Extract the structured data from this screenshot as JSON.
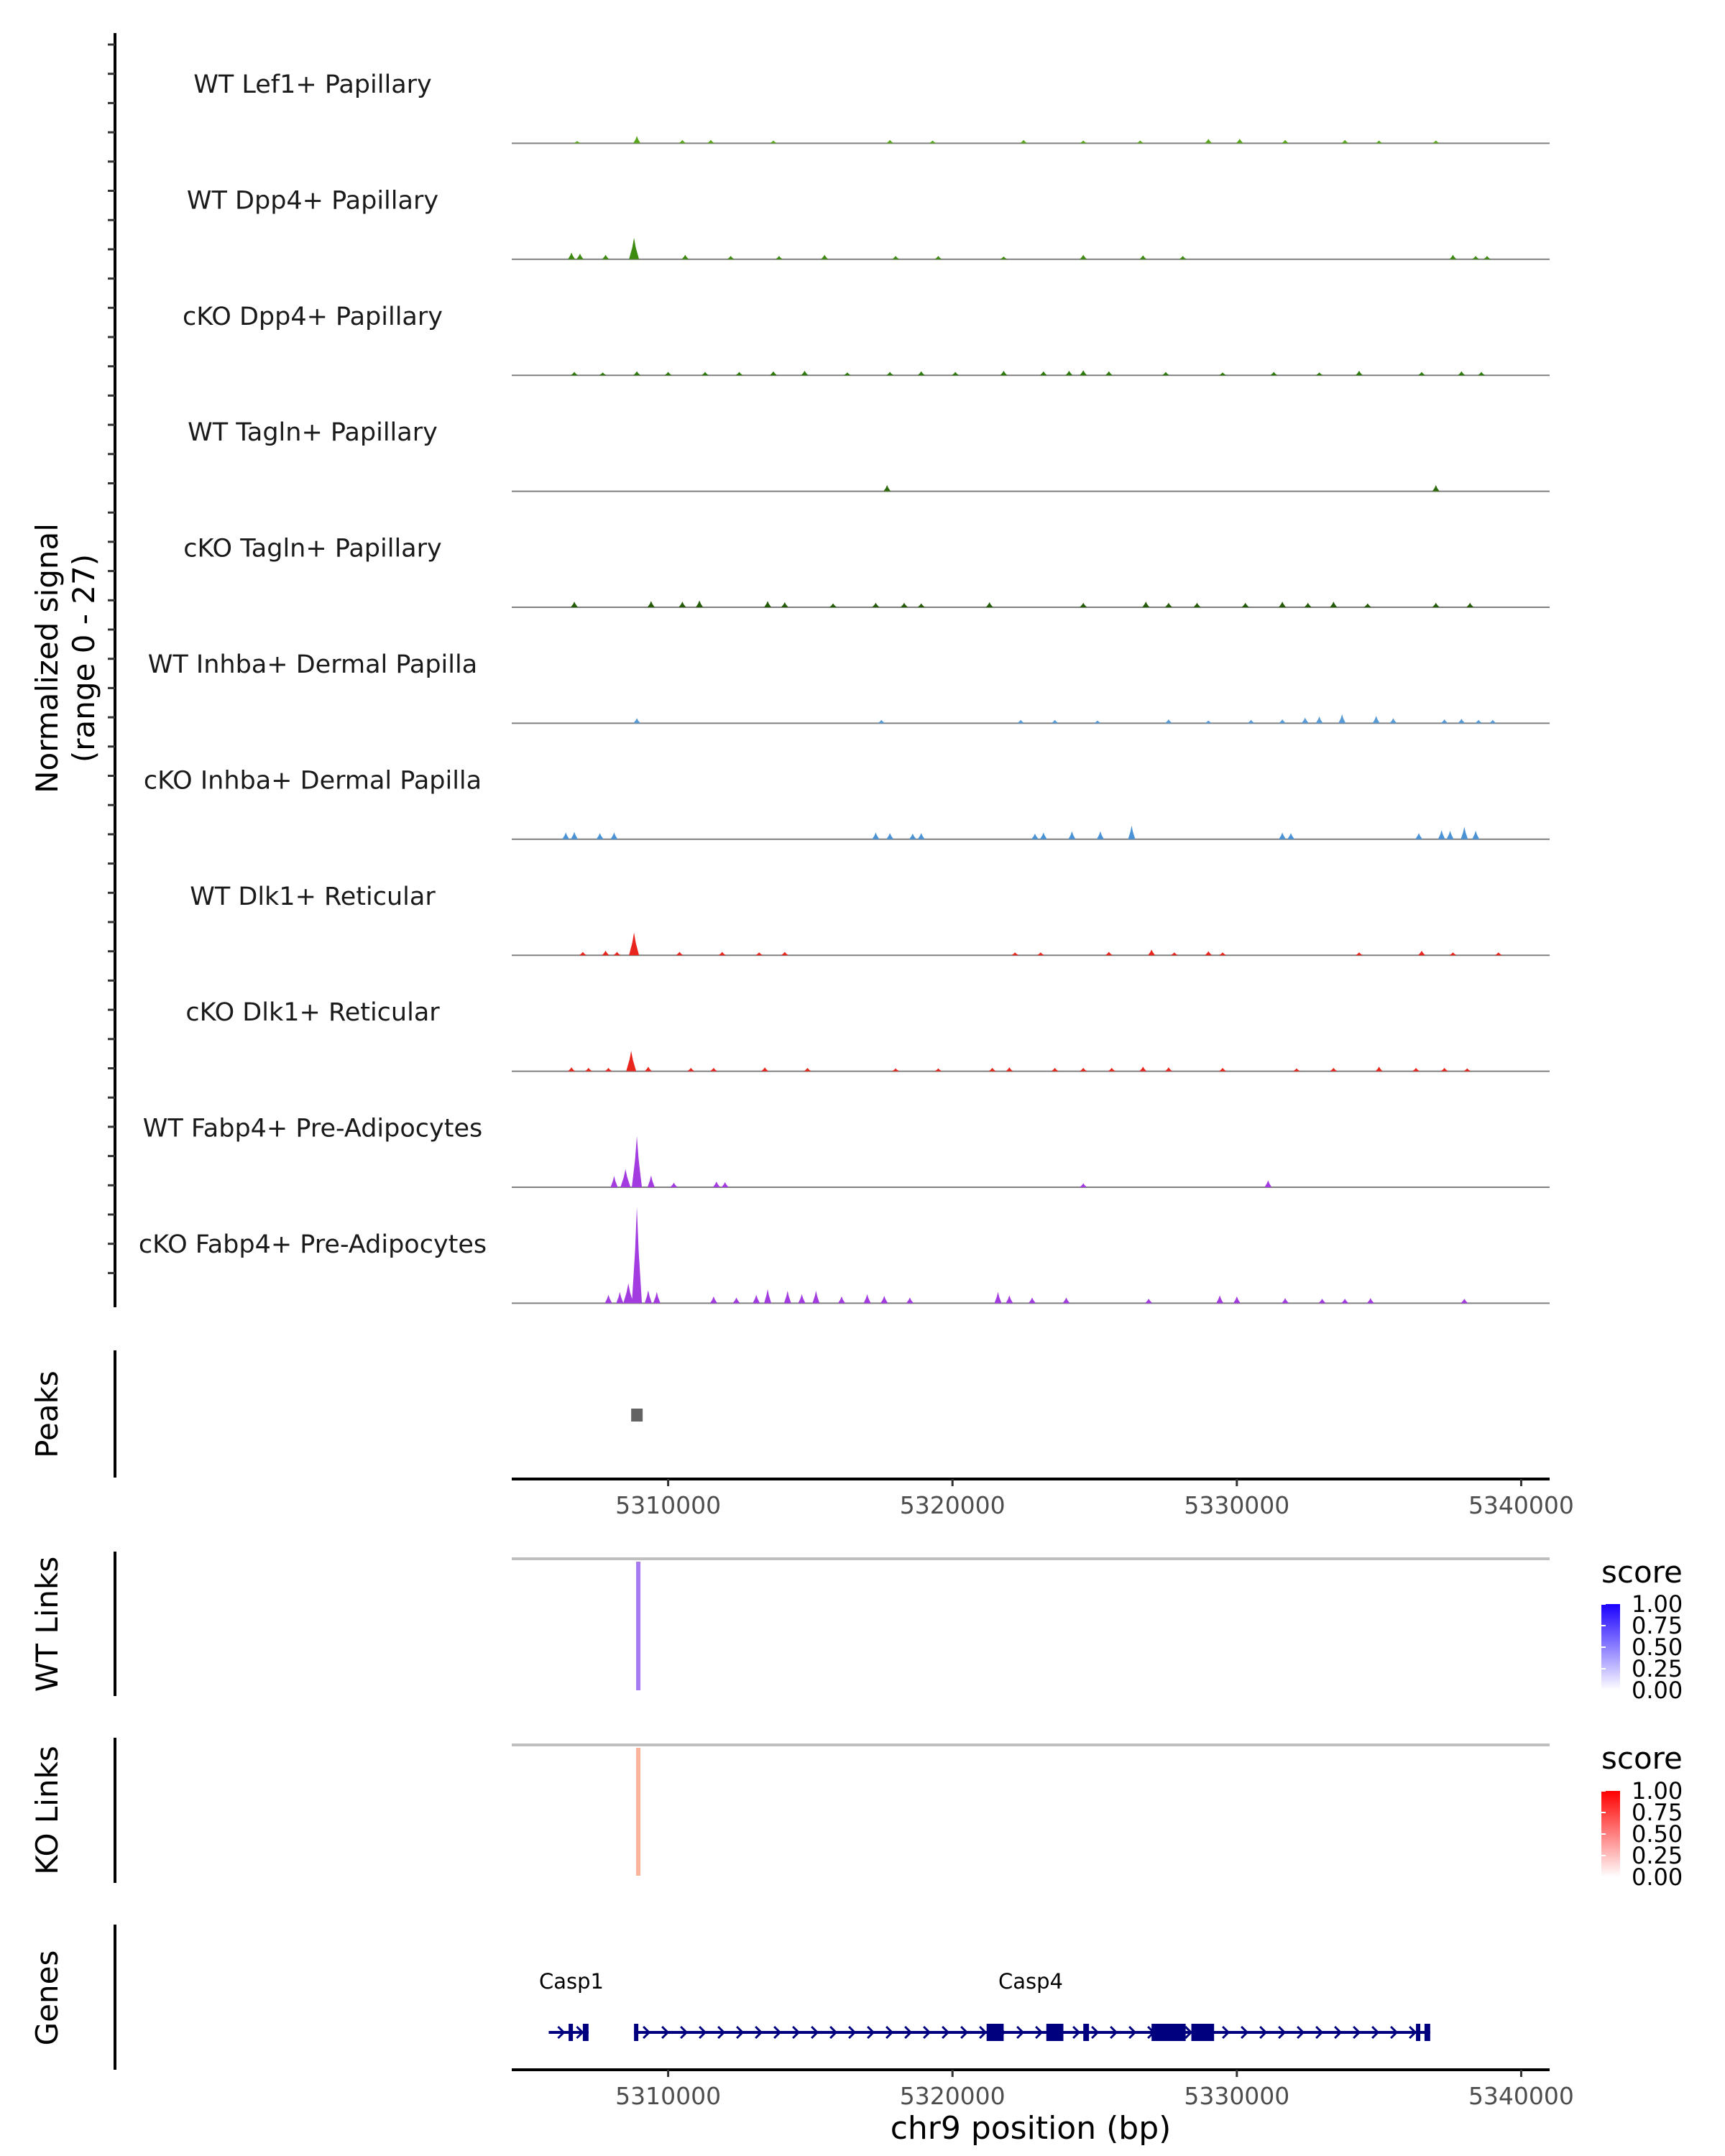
{
  "chart_data": {
    "type": "area",
    "chromosome": "chr9",
    "xlabel": "chr9 position (bp)",
    "xlim": [
      5304500,
      5341000
    ],
    "x_ticks": [
      5310000,
      5320000,
      5330000,
      5340000
    ],
    "x_tick_labels": [
      "5310000",
      "5320000",
      "5330000",
      "5340000"
    ],
    "coverage": {
      "ylabel_line1": "Normalized signal",
      "ylabel_line2": "(range 0 - 27)",
      "ylim": [
        0,
        27
      ],
      "tracks": [
        {
          "name": "WT Lef1+ Papillary",
          "color": "#5aa61f",
          "peaks": [
            [
              5306800,
              0.4
            ],
            [
              5308900,
              1.3
            ],
            [
              5310500,
              0.6
            ],
            [
              5311500,
              0.6
            ],
            [
              5313700,
              0.5
            ],
            [
              5317800,
              0.6
            ],
            [
              5319300,
              0.5
            ],
            [
              5322500,
              0.6
            ],
            [
              5324600,
              0.5
            ],
            [
              5326600,
              0.5
            ],
            [
              5329000,
              0.8
            ],
            [
              5330100,
              0.8
            ],
            [
              5331700,
              0.6
            ],
            [
              5333800,
              0.6
            ],
            [
              5335000,
              0.5
            ],
            [
              5337000,
              0.5
            ]
          ]
        },
        {
          "name": "WT Dpp4+ Papillary",
          "color": "#3c8a0f",
          "peaks": [
            [
              5306600,
              1.2
            ],
            [
              5306900,
              1.0
            ],
            [
              5307800,
              0.8
            ],
            [
              5308800,
              3.8
            ],
            [
              5310600,
              0.8
            ],
            [
              5312200,
              0.6
            ],
            [
              5313900,
              0.6
            ],
            [
              5315500,
              0.8
            ],
            [
              5318000,
              0.6
            ],
            [
              5319500,
              0.6
            ],
            [
              5321800,
              0.5
            ],
            [
              5324600,
              0.8
            ],
            [
              5326700,
              0.7
            ],
            [
              5328100,
              0.6
            ],
            [
              5337600,
              0.8
            ],
            [
              5338400,
              0.6
            ],
            [
              5338800,
              0.6
            ]
          ]
        },
        {
          "name": "cKO Dpp4+ Papillary",
          "color": "#2f7a0c",
          "peaks": [
            [
              5306700,
              0.6
            ],
            [
              5307700,
              0.5
            ],
            [
              5308900,
              0.7
            ],
            [
              5310000,
              0.6
            ],
            [
              5311300,
              0.6
            ],
            [
              5312500,
              0.6
            ],
            [
              5313700,
              0.7
            ],
            [
              5314800,
              0.8
            ],
            [
              5316300,
              0.5
            ],
            [
              5317800,
              0.6
            ],
            [
              5318900,
              0.7
            ],
            [
              5320100,
              0.6
            ],
            [
              5321800,
              0.8
            ],
            [
              5323200,
              0.7
            ],
            [
              5324100,
              0.8
            ],
            [
              5324600,
              0.9
            ],
            [
              5325500,
              0.7
            ],
            [
              5327500,
              0.6
            ],
            [
              5329500,
              0.5
            ],
            [
              5331300,
              0.6
            ],
            [
              5332900,
              0.5
            ],
            [
              5334300,
              0.8
            ],
            [
              5336500,
              0.6
            ],
            [
              5337900,
              0.7
            ],
            [
              5338600,
              0.6
            ]
          ]
        },
        {
          "name": "WT Tagln+ Papillary",
          "color": "#2e6b0c",
          "peaks": [
            [
              5317700,
              1.1
            ],
            [
              5337000,
              1.1
            ]
          ]
        },
        {
          "name": "cKO Tagln+ Papillary",
          "color": "#245c08",
          "peaks": [
            [
              5306700,
              1.0
            ],
            [
              5309400,
              1.1
            ],
            [
              5310500,
              1.0
            ],
            [
              5311100,
              1.2
            ],
            [
              5313500,
              1.1
            ],
            [
              5314100,
              0.9
            ],
            [
              5315800,
              0.7
            ],
            [
              5317300,
              0.8
            ],
            [
              5318300,
              0.8
            ],
            [
              5318900,
              0.7
            ],
            [
              5321300,
              0.9
            ],
            [
              5324600,
              0.8
            ],
            [
              5326800,
              1.0
            ],
            [
              5327600,
              0.8
            ],
            [
              5328600,
              0.8
            ],
            [
              5330300,
              0.8
            ],
            [
              5331600,
              1.0
            ],
            [
              5332500,
              0.8
            ],
            [
              5333400,
              1.0
            ],
            [
              5334600,
              0.7
            ],
            [
              5337000,
              0.8
            ],
            [
              5338200,
              0.8
            ]
          ]
        },
        {
          "name": "WT Inhba+ Dermal Papilla",
          "color": "#5a9bd5",
          "peaks": [
            [
              5308900,
              0.9
            ],
            [
              5317500,
              0.6
            ],
            [
              5322400,
              0.6
            ],
            [
              5323600,
              0.6
            ],
            [
              5325100,
              0.5
            ],
            [
              5327600,
              0.7
            ],
            [
              5329000,
              0.5
            ],
            [
              5330500,
              0.6
            ],
            [
              5331600,
              0.7
            ],
            [
              5332400,
              1.0
            ],
            [
              5332900,
              1.2
            ],
            [
              5333700,
              1.6
            ],
            [
              5334900,
              1.3
            ],
            [
              5335500,
              0.9
            ],
            [
              5337300,
              0.7
            ],
            [
              5337900,
              0.8
            ],
            [
              5338500,
              0.6
            ],
            [
              5339000,
              0.6
            ]
          ]
        },
        {
          "name": "cKO Inhba+ Dermal Papilla",
          "color": "#4a93d6",
          "peaks": [
            [
              5306400,
              1.2
            ],
            [
              5306700,
              1.3
            ],
            [
              5307600,
              1.1
            ],
            [
              5308100,
              1.2
            ],
            [
              5317300,
              1.2
            ],
            [
              5317800,
              1.1
            ],
            [
              5318600,
              1.0
            ],
            [
              5318900,
              1.1
            ],
            [
              5322900,
              1.0
            ],
            [
              5323200,
              1.2
            ],
            [
              5324200,
              1.4
            ],
            [
              5325200,
              1.4
            ],
            [
              5326300,
              2.4
            ],
            [
              5331600,
              1.2
            ],
            [
              5331900,
              1.1
            ],
            [
              5336400,
              1.1
            ],
            [
              5337200,
              1.6
            ],
            [
              5337500,
              1.5
            ],
            [
              5338000,
              2.2
            ],
            [
              5338400,
              1.5
            ]
          ]
        },
        {
          "name": "WT Dlk1+ Reticular",
          "color": "#e8261e",
          "peaks": [
            [
              5307000,
              0.6
            ],
            [
              5307800,
              0.8
            ],
            [
              5308200,
              0.6
            ],
            [
              5308800,
              4.0
            ],
            [
              5310400,
              0.6
            ],
            [
              5311900,
              0.6
            ],
            [
              5313200,
              0.5
            ],
            [
              5314100,
              0.6
            ],
            [
              5322200,
              0.5
            ],
            [
              5323100,
              0.5
            ],
            [
              5325500,
              0.6
            ],
            [
              5327000,
              1.0
            ],
            [
              5327800,
              0.5
            ],
            [
              5329000,
              0.7
            ],
            [
              5329500,
              0.5
            ],
            [
              5334300,
              0.5
            ],
            [
              5336500,
              0.8
            ],
            [
              5337600,
              0.5
            ],
            [
              5339200,
              0.5
            ]
          ]
        },
        {
          "name": "cKO Dlk1+ Reticular",
          "color": "#e8261e",
          "peaks": [
            [
              5306600,
              0.7
            ],
            [
              5307200,
              0.6
            ],
            [
              5307900,
              0.6
            ],
            [
              5308700,
              3.6
            ],
            [
              5309300,
              0.8
            ],
            [
              5310800,
              0.6
            ],
            [
              5311600,
              0.6
            ],
            [
              5313400,
              0.7
            ],
            [
              5314900,
              0.6
            ],
            [
              5318000,
              0.5
            ],
            [
              5319500,
              0.5
            ],
            [
              5321400,
              0.6
            ],
            [
              5322000,
              0.7
            ],
            [
              5323600,
              0.6
            ],
            [
              5324600,
              0.6
            ],
            [
              5325600,
              0.6
            ],
            [
              5326700,
              0.8
            ],
            [
              5327600,
              0.7
            ],
            [
              5329500,
              0.6
            ],
            [
              5332100,
              0.5
            ],
            [
              5333400,
              0.6
            ],
            [
              5335000,
              0.8
            ],
            [
              5336300,
              0.6
            ],
            [
              5337300,
              0.6
            ],
            [
              5338100,
              0.5
            ]
          ]
        },
        {
          "name": "WT Fabp4+ Pre-Adipocytes",
          "color": "#a23be0",
          "peaks": [
            [
              5308100,
              2.0
            ],
            [
              5308500,
              3.2
            ],
            [
              5308900,
              9.0
            ],
            [
              5309400,
              2.1
            ],
            [
              5310200,
              0.8
            ],
            [
              5311700,
              1.0
            ],
            [
              5312000,
              0.9
            ],
            [
              5324600,
              0.7
            ],
            [
              5331100,
              1.2
            ]
          ]
        },
        {
          "name": "cKO Fabp4+ Pre-Adipocytes",
          "color": "#a23be0",
          "peaks": [
            [
              5307900,
              1.5
            ],
            [
              5308300,
              2.0
            ],
            [
              5308600,
              3.5
            ],
            [
              5308900,
              17.0
            ],
            [
              5309300,
              2.3
            ],
            [
              5309600,
              2.0
            ],
            [
              5311600,
              1.2
            ],
            [
              5312400,
              1.0
            ],
            [
              5313100,
              1.5
            ],
            [
              5313500,
              2.5
            ],
            [
              5314200,
              2.2
            ],
            [
              5314700,
              1.6
            ],
            [
              5315200,
              2.2
            ],
            [
              5316100,
              1.2
            ],
            [
              5317000,
              1.6
            ],
            [
              5317600,
              1.3
            ],
            [
              5318500,
              1.0
            ],
            [
              5321600,
              2.0
            ],
            [
              5322000,
              1.4
            ],
            [
              5322800,
              1.0
            ],
            [
              5324000,
              1.0
            ],
            [
              5326900,
              0.8
            ],
            [
              5329400,
              1.4
            ],
            [
              5330000,
              1.2
            ],
            [
              5331700,
              0.9
            ],
            [
              5333000,
              0.8
            ],
            [
              5333800,
              0.8
            ],
            [
              5334700,
              0.9
            ],
            [
              5338000,
              0.8
            ]
          ]
        }
      ]
    },
    "peaks_panel": {
      "label": "Peaks",
      "color": "#636363",
      "regions": [
        [
          5308700,
          5309100
        ]
      ]
    },
    "links_panels": [
      {
        "label": "WT Links",
        "link_color": "#a67cf0",
        "baseline_color": "#bfbfbf",
        "links": [
          {
            "start": 5308950,
            "end": 5308950,
            "score": 0.55
          }
        ],
        "legend": {
          "title": "score",
          "ticks": [
            "1.00",
            "0.75",
            "0.50",
            "0.25",
            "0.00"
          ],
          "color_low": "#ffffff",
          "color_high": "#1a00ff"
        }
      },
      {
        "label": "KO Links",
        "link_color": "#f9b49b",
        "baseline_color": "#bfbfbf",
        "links": [
          {
            "start": 5308950,
            "end": 5308950,
            "score": 0.35
          }
        ],
        "legend": {
          "title": "score",
          "ticks": [
            "1.00",
            "0.75",
            "0.50",
            "0.25",
            "0.00"
          ],
          "color_low": "#ffffff",
          "color_high": "#ff0000"
        }
      }
    ],
    "genes_panel": {
      "label": "Genes",
      "color": "#00007f",
      "genes": [
        {
          "name": "Casp1",
          "strand": "+",
          "start": 5305800,
          "end": 5307200,
          "exons": [
            [
              5306500,
              5306600
            ],
            [
              5307000,
              5307200
            ]
          ]
        },
        {
          "name": "Casp4",
          "strand": "+",
          "start": 5308800,
          "end": 5336800,
          "exons": [
            [
              5308800,
              5308900
            ],
            [
              5321200,
              5321800
            ],
            [
              5323300,
              5323900
            ],
            [
              5324600,
              5324800
            ],
            [
              5327000,
              5328200
            ],
            [
              5328400,
              5329200
            ],
            [
              5336300,
              5336400
            ],
            [
              5336600,
              5336800
            ]
          ]
        }
      ]
    }
  }
}
